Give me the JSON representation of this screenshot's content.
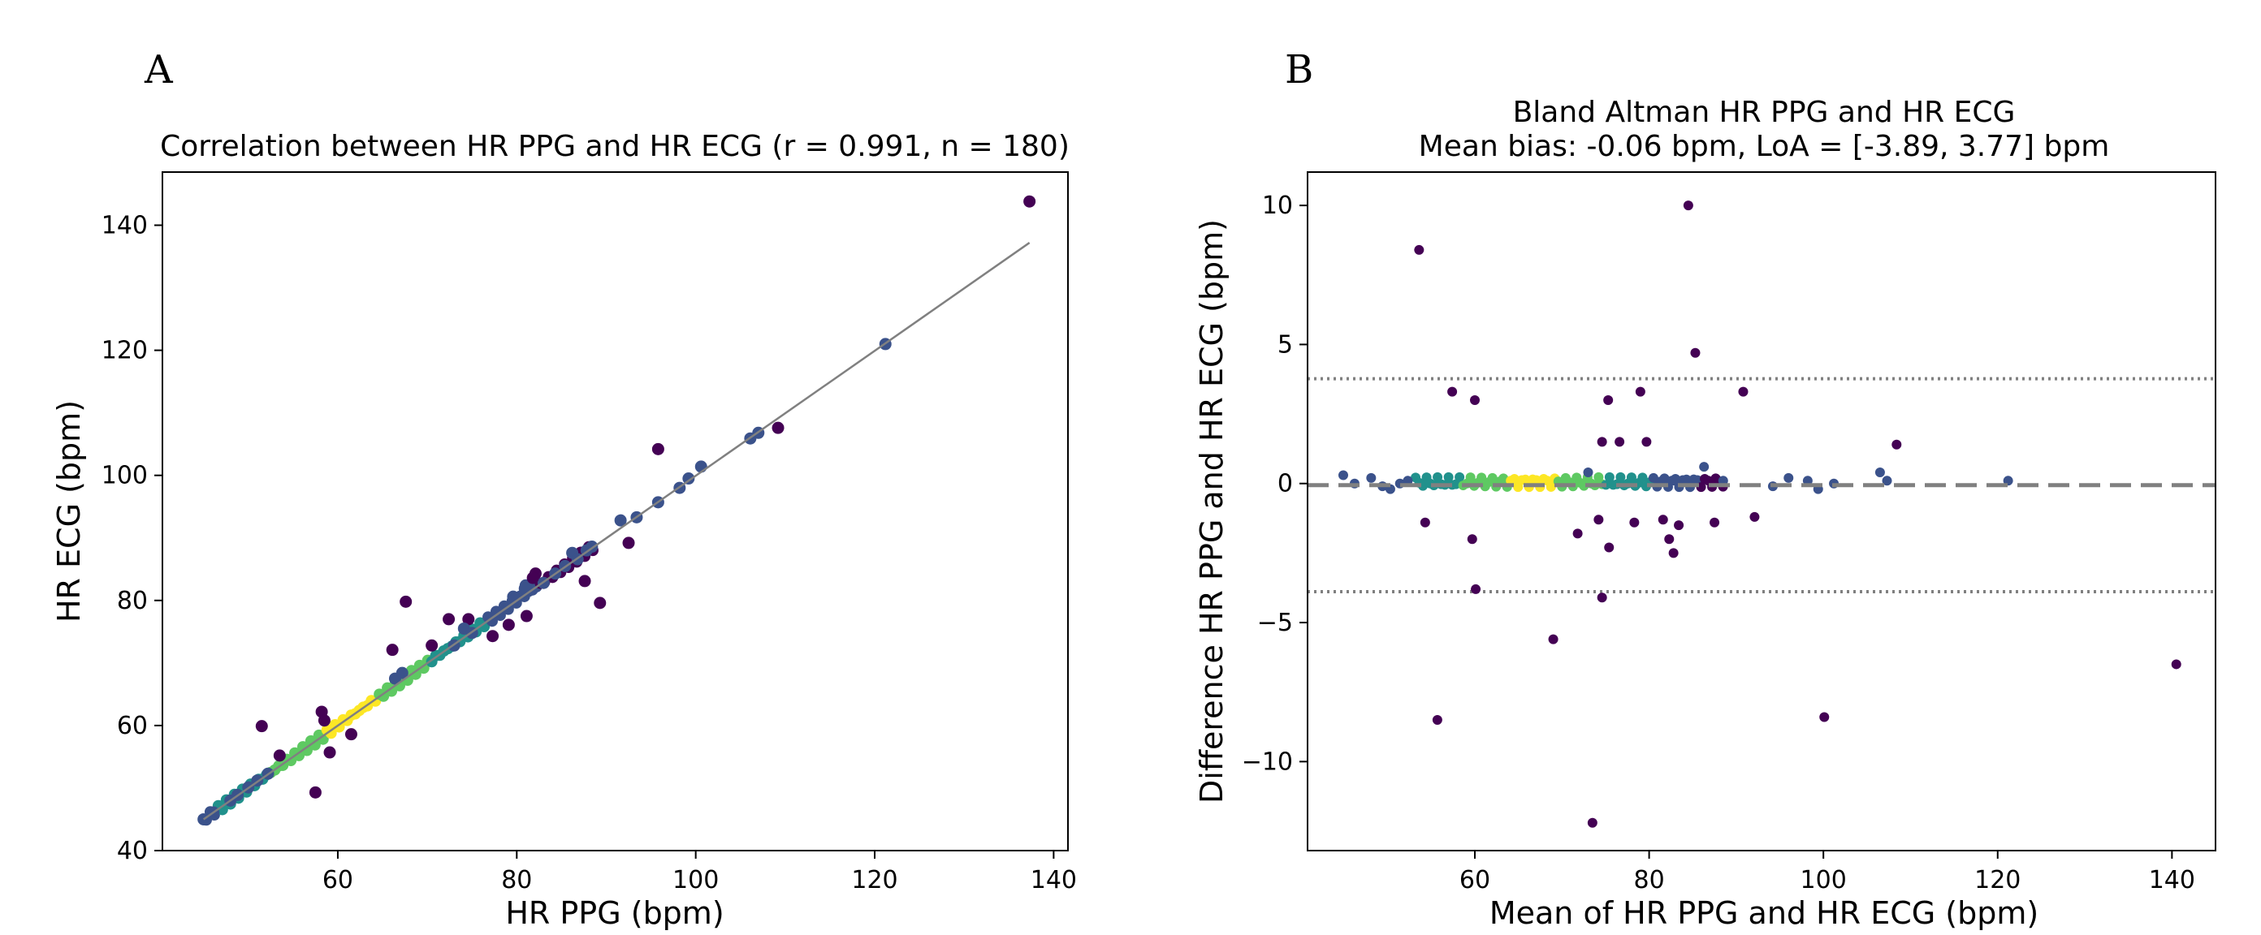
{
  "chart_data": [
    {
      "type": "scatter",
      "panel_label": "A",
      "title": "Correlation between HR PPG and HR ECG (r = 0.991, n = 180)",
      "xlabel": "HR PPG (bpm)",
      "ylabel": "HR ECG (bpm)",
      "xlim": [
        40.4,
        141.6
      ],
      "ylim": [
        40,
        148.5
      ],
      "xticks": [
        60,
        80,
        100,
        120,
        140
      ],
      "yticks": [
        40,
        60,
        80,
        100,
        120,
        140
      ],
      "grid": false,
      "regression_line": {
        "x": [
          45,
          137.3
        ],
        "y": [
          45,
          137.2
        ],
        "color": "#808080"
      },
      "outliers": [
        {
          "x": 137.3,
          "y": 143.8
        },
        {
          "x": 121.2,
          "y": 121.0
        },
        {
          "x": 109.2,
          "y": 107.6
        },
        {
          "x": 107.0,
          "y": 106.8
        },
        {
          "x": 106.1,
          "y": 105.9
        },
        {
          "x": 95.8,
          "y": 104.2
        },
        {
          "x": 51.5,
          "y": 59.9
        },
        {
          "x": 57.5,
          "y": 49.3
        },
        {
          "x": 58.2,
          "y": 62.2
        },
        {
          "x": 58.5,
          "y": 60.8
        },
        {
          "x": 59.1,
          "y": 55.7
        },
        {
          "x": 61.5,
          "y": 58.6
        },
        {
          "x": 66.1,
          "y": 72.1
        },
        {
          "x": 67.6,
          "y": 79.8
        },
        {
          "x": 70.5,
          "y": 72.8
        },
        {
          "x": 72.4,
          "y": 77.0
        },
        {
          "x": 74.6,
          "y": 77.0
        },
        {
          "x": 77.3,
          "y": 74.3
        },
        {
          "x": 79.1,
          "y": 76.1
        },
        {
          "x": 81.1,
          "y": 77.5
        },
        {
          "x": 82.1,
          "y": 84.3
        },
        {
          "x": 87.6,
          "y": 83.1
        },
        {
          "x": 89.3,
          "y": 79.6
        },
        {
          "x": 92.5,
          "y": 89.2
        },
        {
          "x": 91.6,
          "y": 92.8
        },
        {
          "x": 93.4,
          "y": 93.3
        },
        {
          "x": 95.8,
          "y": 95.7
        },
        {
          "x": 98.2,
          "y": 98.0
        },
        {
          "x": 99.2,
          "y": 99.5
        },
        {
          "x": 100.6,
          "y": 101.4
        },
        {
          "x": 45.0,
          "y": 45.0
        },
        {
          "x": 46.1,
          "y": 46.1
        },
        {
          "x": 48.0,
          "y": 48.0
        },
        {
          "x": 48.8,
          "y": 48.9
        },
        {
          "x": 50.0,
          "y": 50.1
        },
        {
          "x": 51.0,
          "y": 51.2
        },
        {
          "x": 52.2,
          "y": 52.3
        },
        {
          "x": 53.5,
          "y": 55.2
        },
        {
          "x": 66.4,
          "y": 67.5
        },
        {
          "x": 67.2,
          "y": 68.4
        },
        {
          "x": 73.0,
          "y": 72.8
        },
        {
          "x": 74.1,
          "y": 75.5
        },
        {
          "x": 81.0,
          "y": 82.4
        },
        {
          "x": 83.0,
          "y": 82.8
        },
        {
          "x": 85.4,
          "y": 85.5
        },
        {
          "x": 86.2,
          "y": 87.6
        },
        {
          "x": 87.8,
          "y": 88.0
        },
        {
          "x": 88.4,
          "y": 88.6
        },
        {
          "x": 80.9,
          "y": 81.9
        },
        {
          "x": 81.8,
          "y": 83.6
        },
        {
          "x": 84.3,
          "y": 84.3
        },
        {
          "x": 86.8,
          "y": 86.6
        },
        {
          "x": 79.6,
          "y": 80.6
        },
        {
          "x": 75.0,
          "y": 74.8
        }
      ],
      "colorbar": "viridis (point density)"
    },
    {
      "type": "scatter",
      "panel_label": "B",
      "title": "Bland Altman HR PPG and HR ECG",
      "subtitle": "Mean bias: -0.06 bpm, LoA = [-3.89, 3.77] bpm",
      "xlabel": "Mean of HR PPG and HR ECG (bpm)",
      "ylabel": "Difference HR PPG and HR ECG (bpm)",
      "xlim": [
        40.8,
        145.0
      ],
      "ylim": [
        -13.2,
        11.2
      ],
      "xticks": [
        60,
        80,
        100,
        120,
        140
      ],
      "yticks": [
        -10,
        -5,
        0,
        5,
        10
      ],
      "grid": false,
      "mean_bias": -0.06,
      "loa_upper": 3.77,
      "loa_lower": -3.89,
      "outliers": [
        {
          "x": 53.6,
          "y": 8.4
        },
        {
          "x": 84.5,
          "y": 10.0
        },
        {
          "x": 85.3,
          "y": 4.7
        },
        {
          "x": 57.4,
          "y": 3.3
        },
        {
          "x": 60.0,
          "y": 3.0
        },
        {
          "x": 75.3,
          "y": 3.0
        },
        {
          "x": 79.0,
          "y": 3.3
        },
        {
          "x": 90.8,
          "y": 3.3
        },
        {
          "x": 108.4,
          "y": 1.4
        },
        {
          "x": 106.5,
          "y": 0.4
        },
        {
          "x": 107.3,
          "y": 0.1
        },
        {
          "x": 121.2,
          "y": 0.1
        },
        {
          "x": 54.3,
          "y": -1.4
        },
        {
          "x": 59.7,
          "y": -2.0
        },
        {
          "x": 60.1,
          "y": -3.8
        },
        {
          "x": 55.7,
          "y": -8.5
        },
        {
          "x": 69.0,
          "y": -5.6
        },
        {
          "x": 73.5,
          "y": -12.2
        },
        {
          "x": 74.6,
          "y": -4.1
        },
        {
          "x": 75.4,
          "y": -2.3
        },
        {
          "x": 71.8,
          "y": -1.8
        },
        {
          "x": 74.2,
          "y": -1.3
        },
        {
          "x": 78.3,
          "y": -1.4
        },
        {
          "x": 81.6,
          "y": -1.3
        },
        {
          "x": 82.3,
          "y": -2.0
        },
        {
          "x": 82.8,
          "y": -2.5
        },
        {
          "x": 83.4,
          "y": -1.5
        },
        {
          "x": 87.5,
          "y": -1.4
        },
        {
          "x": 92.1,
          "y": -1.2
        },
        {
          "x": 100.1,
          "y": -8.4
        },
        {
          "x": 140.5,
          "y": -6.5
        },
        {
          "x": 74.6,
          "y": 1.5
        },
        {
          "x": 76.6,
          "y": 1.5
        },
        {
          "x": 79.7,
          "y": 1.5
        },
        {
          "x": 44.9,
          "y": 0.3
        },
        {
          "x": 46.2,
          "y": 0.0
        },
        {
          "x": 48.1,
          "y": 0.2
        },
        {
          "x": 49.4,
          "y": -0.1
        },
        {
          "x": 50.3,
          "y": -0.2
        },
        {
          "x": 51.4,
          "y": 0.0
        },
        {
          "x": 52.3,
          "y": 0.1
        },
        {
          "x": 86.3,
          "y": 0.6
        },
        {
          "x": 94.2,
          "y": -0.1
        },
        {
          "x": 96.0,
          "y": 0.2
        },
        {
          "x": 98.2,
          "y": 0.1
        },
        {
          "x": 99.4,
          "y": -0.2
        },
        {
          "x": 101.2,
          "y": 0.0
        },
        {
          "x": 73.0,
          "y": 0.4
        },
        {
          "x": 82.9,
          "y": 0.1
        },
        {
          "x": 88.5,
          "y": 0.1
        }
      ],
      "colorbar": "viridis (point density)"
    }
  ]
}
